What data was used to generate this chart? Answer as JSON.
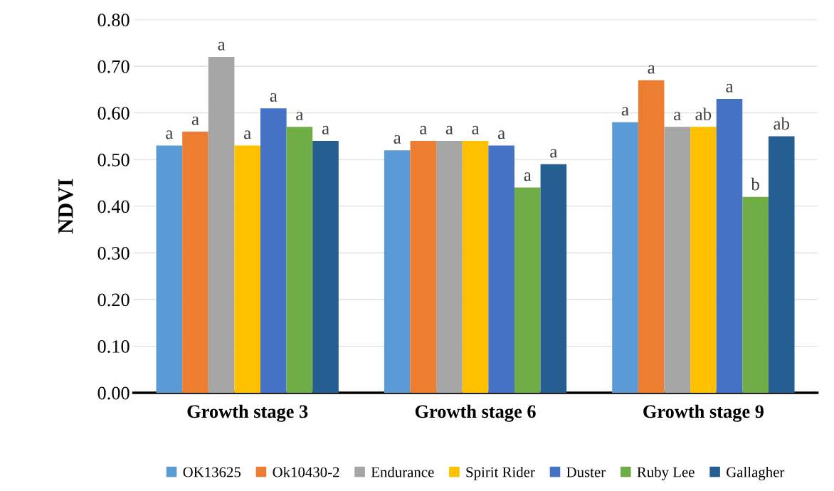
{
  "chart_data": {
    "type": "bar",
    "ylabel": "NDVI",
    "categories": [
      "Growth stage 3",
      "Growth stage 6",
      "Growth stage 9"
    ],
    "series": [
      {
        "name": "OK13625",
        "color": "#5b9bd5",
        "values": [
          0.53,
          0.52,
          0.58
        ],
        "value_labels": [
          "a",
          "a",
          "a"
        ]
      },
      {
        "name": "Ok10430-2",
        "color": "#ed7d31",
        "values": [
          0.56,
          0.54,
          0.67
        ],
        "value_labels": [
          "a",
          "a",
          "a"
        ]
      },
      {
        "name": "Endurance",
        "color": "#a5a5a5",
        "values": [
          0.72,
          0.54,
          0.57
        ],
        "value_labels": [
          "a",
          "a",
          "a"
        ]
      },
      {
        "name": "Spirit Rider",
        "color": "#ffc000",
        "values": [
          0.53,
          0.54,
          0.57
        ],
        "value_labels": [
          "a",
          "a",
          "ab"
        ]
      },
      {
        "name": "Duster",
        "color": "#4472c4",
        "values": [
          0.61,
          0.53,
          0.63
        ],
        "value_labels": [
          "a",
          "a",
          "a"
        ]
      },
      {
        "name": "Ruby Lee",
        "color": "#70ad47",
        "values": [
          0.57,
          0.44,
          0.42
        ],
        "value_labels": [
          "a",
          "a",
          "b"
        ]
      },
      {
        "name": "Gallagher",
        "color": "#255e91",
        "values": [
          0.54,
          0.49,
          0.55
        ],
        "value_labels": [
          "a",
          "a",
          "ab"
        ]
      }
    ],
    "ylim": [
      0,
      0.8
    ],
    "yticks": [
      {
        "value": 0,
        "label": "0.00"
      },
      {
        "value": 0.1,
        "label": "0.10"
      },
      {
        "value": 0.2,
        "label": "0.20"
      },
      {
        "value": 0.3,
        "label": "0.30"
      },
      {
        "value": 0.4,
        "label": "0.40"
      },
      {
        "value": 0.5,
        "label": "0.50"
      },
      {
        "value": 0.6,
        "label": "0.60"
      },
      {
        "value": 0.7,
        "label": "0.70"
      },
      {
        "value": 0.8,
        "label": "0.80"
      }
    ],
    "grid": "y",
    "legend": "bottom"
  }
}
